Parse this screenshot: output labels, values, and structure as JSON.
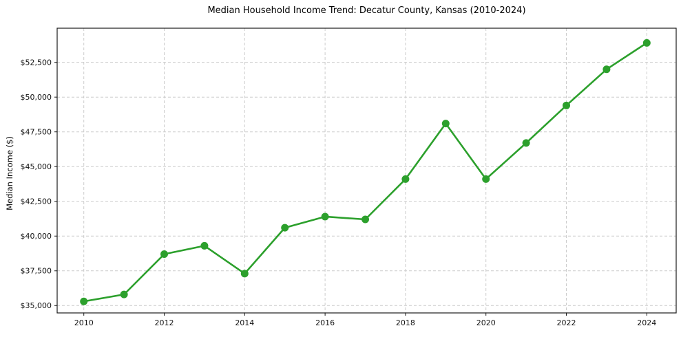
{
  "page": {
    "background_color": "#ffffff"
  },
  "chart_data": {
    "type": "line",
    "title": "Median Household Income Trend: Decatur County, Kansas (2010-2024)",
    "xlabel": "",
    "ylabel": "Median Income ($)",
    "x": [
      2010,
      2011,
      2012,
      2013,
      2014,
      2015,
      2016,
      2017,
      2018,
      2019,
      2020,
      2021,
      2022,
      2023,
      2024
    ],
    "values": [
      35300,
      35800,
      38700,
      39300,
      37300,
      40600,
      41400,
      41200,
      44100,
      48100,
      44100,
      46700,
      49400,
      52000,
      53900
    ],
    "series_name": "Median Household Income",
    "line_color": "#2ca02c",
    "marker": "circle",
    "marker_color": "#2ca02c",
    "xlim": [
      2009.337,
      2024.731
    ],
    "ylim": [
      34470,
      54959
    ],
    "xticks": {
      "values": [
        2010,
        2012,
        2014,
        2016,
        2018,
        2020,
        2022,
        2024
      ],
      "labels": [
        "2010",
        "2012",
        "2014",
        "2016",
        "2018",
        "2020",
        "2022",
        "2024"
      ]
    },
    "yticks": {
      "values": [
        35000,
        37500,
        40000,
        42500,
        45000,
        47500,
        50000,
        52500
      ],
      "labels": [
        "$35,000",
        "$37,500",
        "$40,000",
        "$42,500",
        "$45,000",
        "$47,500",
        "$50,000",
        "$52,500"
      ]
    },
    "grid": true,
    "grid_style": "dashed",
    "grid_color": "#cccccc",
    "spine_color": "#1a1a1a",
    "tick_label_color": "#111111",
    "legend": "none"
  }
}
